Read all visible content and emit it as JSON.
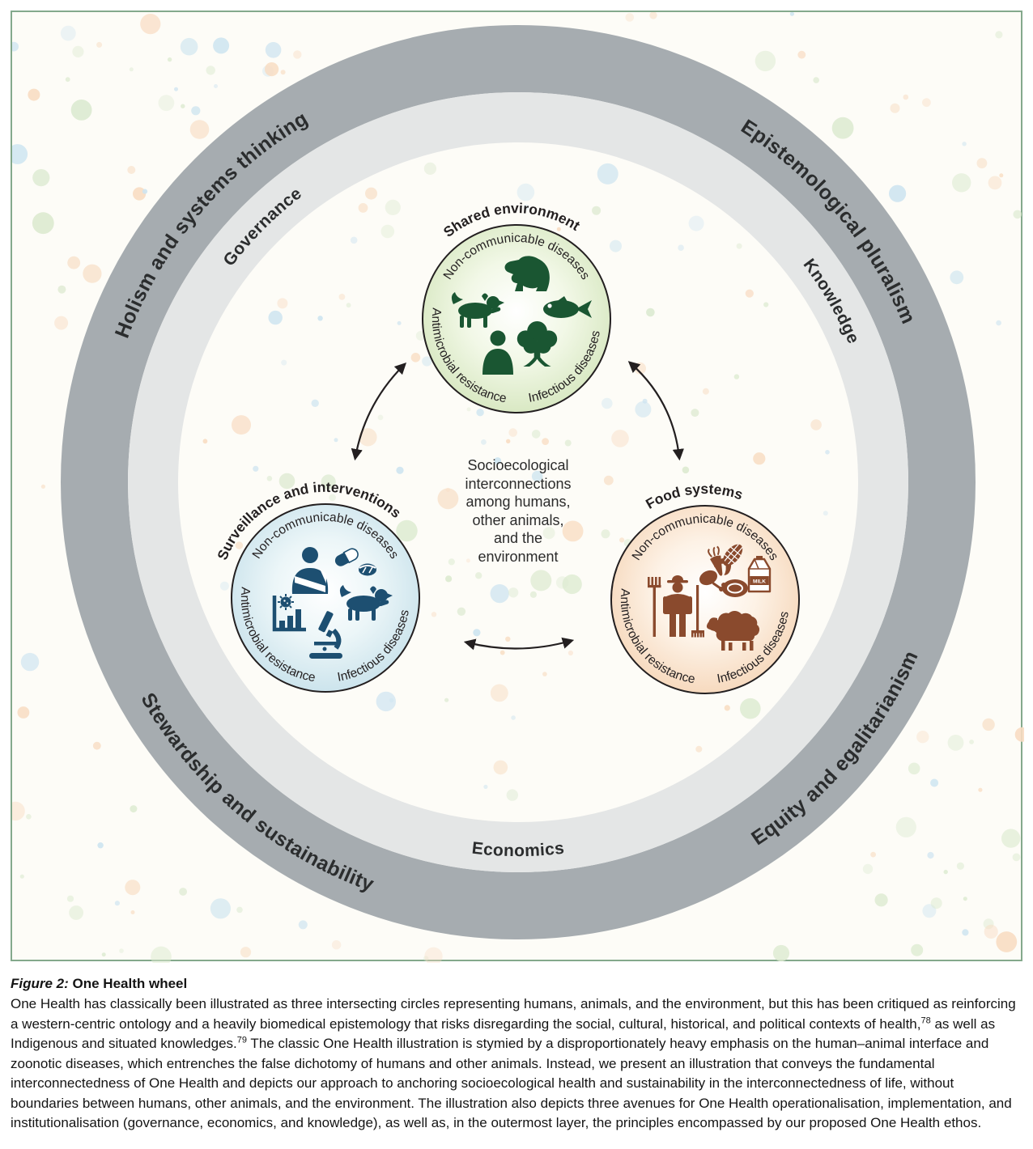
{
  "palette": {
    "border_green": "#84a98c",
    "panel_background": "#fdfcf7",
    "dark_ring": "#a6acb0",
    "light_ring": "#e4e6e6",
    "dot_blue": "#cde4f0",
    "dot_green": "#dcead0",
    "dot_peach": "#f8dcc2",
    "environment_green": "#1a5632",
    "environment_fill_edge": "#d3e5bb",
    "surveillance_blue": "#1d4f71",
    "surveillance_fill_edge": "#c5e0ea",
    "food_brown": "#8a4a2d",
    "food_fill_edge": "#f5d4b5",
    "text_dark": "#231f20"
  },
  "wheel": {
    "outer_ring_labels": {
      "top_left": "Holism and systems thinking",
      "top_right": "Epistemological pluralism",
      "bottom_right": "Equity and egalitarianism",
      "bottom_left": "Stewardship and sustainability"
    },
    "inner_ring_labels": {
      "top_left": "Governance",
      "right": "Knowledge",
      "bottom": "Economics"
    },
    "center_text": "Socioecological\ninterconnections\namong humans,\nother animals,\nand the\nenvironment",
    "circles": {
      "environment": {
        "title": "Shared environment",
        "label_top": "Non-communicable diseases",
        "label_left": "Antimicrobial resistance",
        "label_right": "Infectious diseases",
        "icons": [
          "gorilla",
          "dog",
          "fish",
          "human",
          "tree"
        ]
      },
      "surveillance": {
        "title": "Surveillance and interventions",
        "label_top": "Non-communicable diseases",
        "label_left": "Antimicrobial resistance",
        "label_right": "Infectious diseases",
        "icons": [
          "injured-person",
          "capsule-and-pill",
          "dog",
          "bar-chart-virus",
          "microscope"
        ]
      },
      "food": {
        "title": "Food systems",
        "label_top": "Non-communicable diseases",
        "label_left": "Antimicrobial resistance",
        "label_right": "Infectious diseases",
        "milk_label": "MILK",
        "icons": [
          "farmer-with-pitchfork-and-rake",
          "corn",
          "carrot",
          "ham",
          "steak",
          "milk-carton",
          "sheep"
        ]
      }
    }
  },
  "caption": {
    "label": "Figure 2:",
    "title": " One Health wheel",
    "body_1": "One Health has classically been illustrated as three intersecting circles representing humans, animals, and the environment, but this has been critiqued as reinforcing a western-centric ontology and a heavily biomedical epistemology that risks disregarding the social, cultural, historical, and political contexts of health,",
    "ref_1": "78",
    "body_2": " as well as Indigenous and situated knowledges.",
    "ref_2": "79",
    "body_3": " The classic One Health illustration is stymied by a disproportionately heavy emphasis on the human–animal interface and zoonotic diseases, which entrenches the false dichotomy of humans and other animals. Instead, we present an illustration that conveys the fundamental interconnectedness of One Health and depicts our approach to anchoring socioecological health and sustainability in the interconnectedness of life, without boundaries between humans, other animals, and the environment. The illustration also depicts three avenues for One Health operationalisation, implementation, and institutionalisation (governance, economics, and knowledge), as well as, in the outermost layer, the principles encompassed by our proposed One Health ethos."
  }
}
